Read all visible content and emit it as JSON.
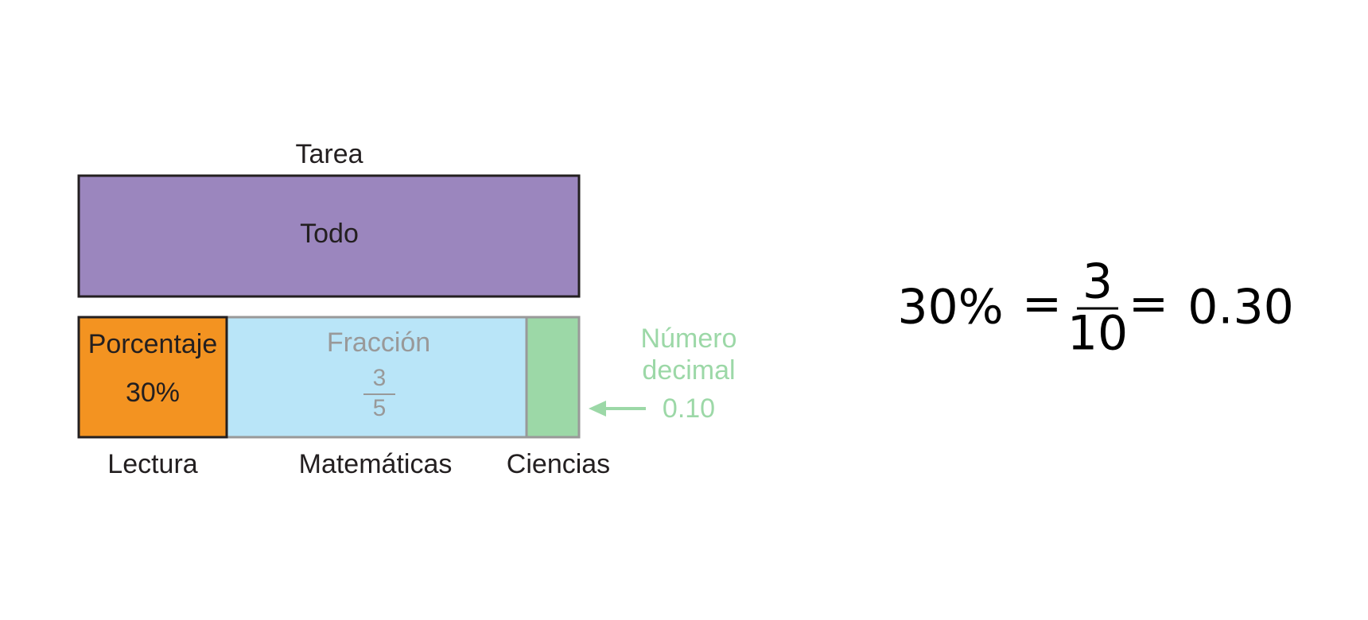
{
  "diagram": {
    "title": "Tarea",
    "whole": "Todo",
    "segments": [
      {
        "label": "Lectura",
        "heading": "Porcentaje",
        "value": "30%"
      },
      {
        "label": "Matemáticas",
        "heading": "Fracción",
        "numerator": "3",
        "denominator": "5"
      },
      {
        "label": "Ciencias",
        "heading": [
          "Número",
          "decimal"
        ],
        "value": "0.10"
      }
    ]
  },
  "equation": {
    "percent": "30%",
    "eq1": "=",
    "numerator": "3",
    "denominator": "10",
    "eq2": "=",
    "decimal": "0.30"
  }
}
